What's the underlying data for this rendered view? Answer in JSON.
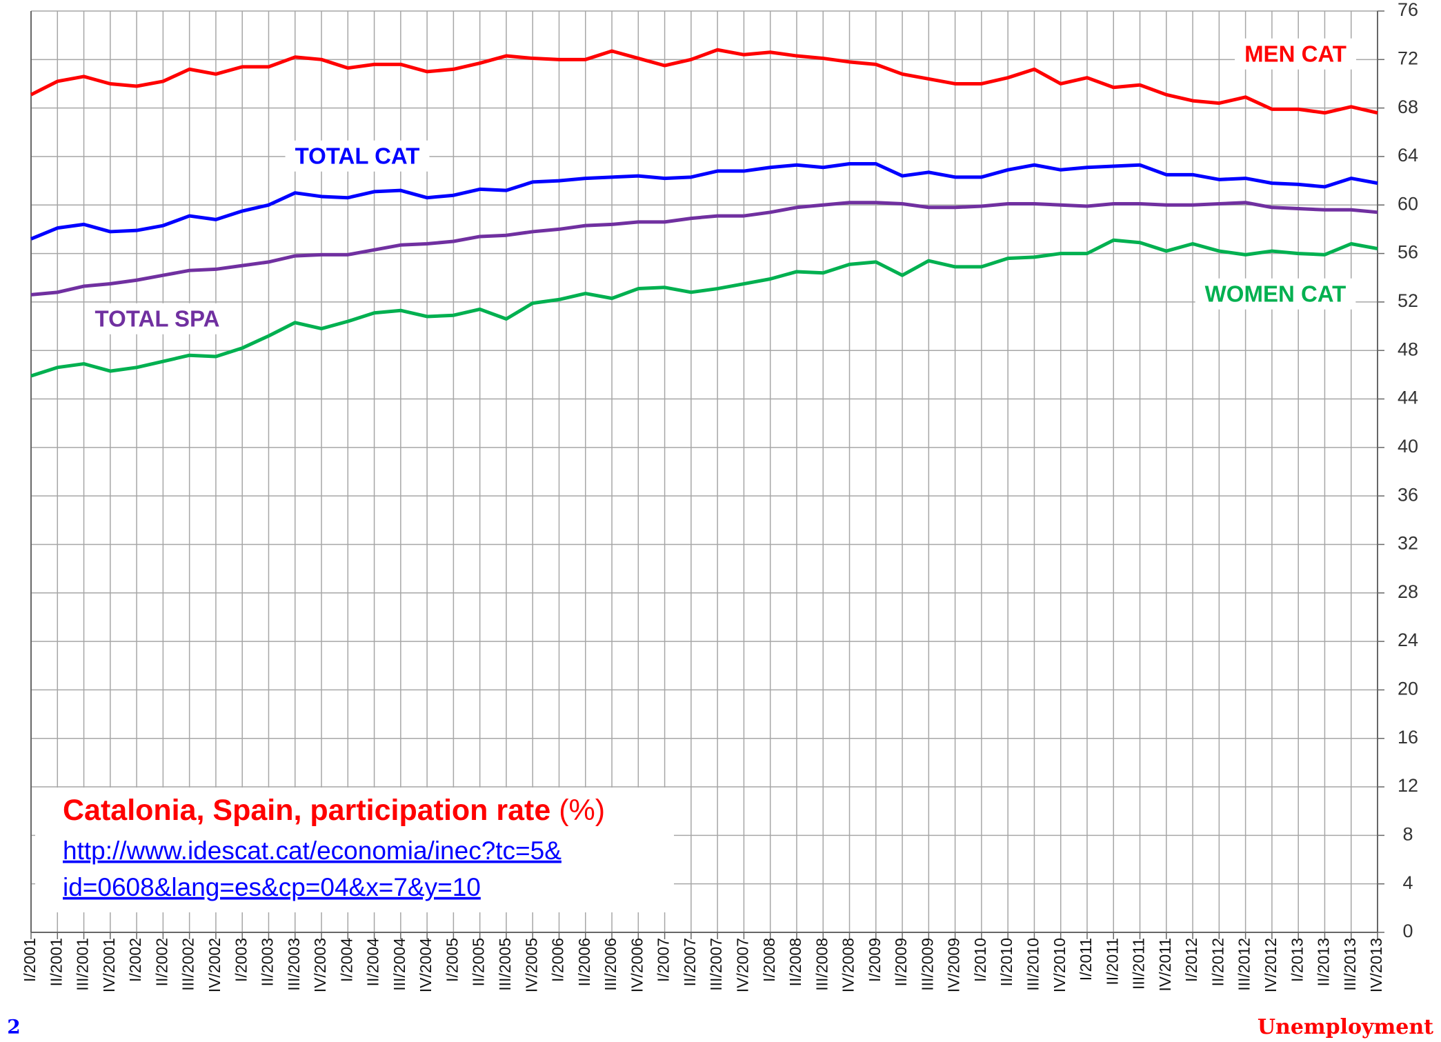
{
  "chart_data": {
    "type": "line",
    "title": "Catalonia, Spain, participation rate",
    "title_unit": "(%)",
    "source": [
      "http://www.idescat.cat/economia/inec?tc=5&",
      "id=0608&lang=es&cp=04&x=7&y=10"
    ],
    "page_number": "2",
    "footer_label": "Unemployment",
    "categories": [
      "I/2001",
      "II/2001",
      "III/2001",
      "IV/2001",
      "I/2002",
      "II/2002",
      "III/2002",
      "IV/2002",
      "I/2003",
      "II/2003",
      "III/2003",
      "IV/2003",
      "I/2004",
      "II/2004",
      "III/2004",
      "IV/2004",
      "I/2005",
      "II/2005",
      "III/2005",
      "IV/2005",
      "I/2006",
      "II/2006",
      "III/2006",
      "IV/2006",
      "I/2007",
      "II/2007",
      "III/2007",
      "IV/2007",
      "I/2008",
      "II/2008",
      "III/2008",
      "IV/2008",
      "I/2009",
      "II/2009",
      "III/2009",
      "IV/2009",
      "I/2010",
      "II/2010",
      "III/2010",
      "IV/2010",
      "I/2011",
      "II/2011",
      "III/2011",
      "IV/2011",
      "I/2012",
      "II/2012",
      "III/2012",
      "IV/2012",
      "I/2013",
      "II/2013",
      "III/2013",
      "IV/2013"
    ],
    "series": [
      {
        "name": "MEN CAT",
        "color": "#ff0000",
        "values": [
          69.1,
          70.2,
          70.6,
          70.0,
          69.8,
          70.2,
          71.2,
          70.8,
          71.4,
          71.4,
          72.2,
          72.0,
          71.3,
          71.6,
          71.6,
          71.0,
          71.2,
          71.7,
          72.3,
          72.1,
          72.0,
          72.0,
          72.7,
          72.1,
          71.5,
          72.0,
          72.8,
          72.4,
          72.6,
          72.3,
          72.1,
          71.8,
          71.6,
          70.8,
          70.4,
          70.0,
          70.0,
          70.5,
          71.2,
          70.0,
          70.5,
          69.7,
          69.9,
          69.1,
          68.6,
          68.4,
          68.9,
          67.9,
          67.9,
          67.6,
          68.1,
          67.6
        ]
      },
      {
        "name": "TOTAL CAT",
        "color": "#0000ff",
        "values": [
          57.2,
          58.1,
          58.4,
          57.8,
          57.9,
          58.3,
          59.1,
          58.8,
          59.5,
          60.0,
          61.0,
          60.7,
          60.6,
          61.1,
          61.2,
          60.6,
          60.8,
          61.3,
          61.2,
          61.9,
          62.0,
          62.2,
          62.3,
          62.4,
          62.2,
          62.3,
          62.8,
          62.8,
          63.1,
          63.3,
          63.1,
          63.4,
          63.4,
          62.4,
          62.7,
          62.3,
          62.3,
          62.9,
          63.3,
          62.9,
          63.1,
          63.2,
          63.3,
          62.5,
          62.5,
          62.1,
          62.2,
          61.8,
          61.7,
          61.5,
          62.2,
          61.8
        ]
      },
      {
        "name": "TOTAL SPA",
        "color": "#7030a0",
        "values": [
          52.6,
          52.8,
          53.3,
          53.5,
          53.8,
          54.2,
          54.6,
          54.7,
          55.0,
          55.3,
          55.8,
          55.9,
          55.9,
          56.3,
          56.7,
          56.8,
          57.0,
          57.4,
          57.5,
          57.8,
          58.0,
          58.3,
          58.4,
          58.6,
          58.6,
          58.9,
          59.1,
          59.1,
          59.4,
          59.8,
          60.0,
          60.2,
          60.2,
          60.1,
          59.8,
          59.8,
          59.9,
          60.1,
          60.1,
          60.0,
          59.9,
          60.1,
          60.1,
          60.0,
          60.0,
          60.1,
          60.2,
          59.8,
          59.7,
          59.6,
          59.6,
          59.4
        ]
      },
      {
        "name": "WOMEN CAT",
        "color": "#00b050",
        "values": [
          45.9,
          46.6,
          46.9,
          46.3,
          46.6,
          47.1,
          47.6,
          47.5,
          48.2,
          49.2,
          50.3,
          49.8,
          50.4,
          51.1,
          51.3,
          50.8,
          50.9,
          51.4,
          50.6,
          51.9,
          52.2,
          52.7,
          52.3,
          53.1,
          53.2,
          52.8,
          53.1,
          53.5,
          53.9,
          54.5,
          54.4,
          55.1,
          55.3,
          54.2,
          55.4,
          54.9,
          54.9,
          55.6,
          55.7,
          56.0,
          56.0,
          57.1,
          56.9,
          56.2,
          56.8,
          56.2,
          55.9,
          56.2,
          56.0,
          55.9,
          56.8,
          56.4
        ]
      }
    ],
    "ylim": [
      0,
      76
    ],
    "yticks": [
      0,
      4,
      8,
      12,
      16,
      20,
      24,
      28,
      32,
      36,
      40,
      44,
      48,
      52,
      56,
      60,
      64,
      68,
      72,
      76
    ],
    "grid": true
  }
}
